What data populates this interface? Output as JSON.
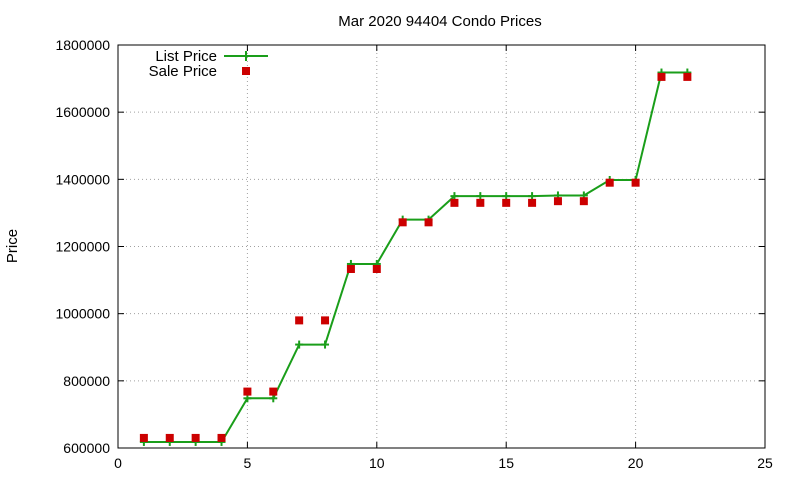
{
  "chart_data": {
    "type": "line",
    "title": "Mar 2020 94404 Condo Prices",
    "xlabel": "",
    "ylabel": "Price",
    "xlim": [
      0,
      25
    ],
    "ylim": [
      600000,
      1800000
    ],
    "x_ticks": [
      0,
      5,
      10,
      15,
      20,
      25
    ],
    "y_ticks": [
      600000,
      800000,
      1000000,
      1200000,
      1400000,
      1600000,
      1800000
    ],
    "x_tick_labels": [
      "0",
      "5",
      "10",
      "15",
      "20",
      "25"
    ],
    "y_tick_labels": [
      "600000",
      "800000",
      "1000000",
      "1200000",
      "1400000",
      "1600000",
      "1800000"
    ],
    "grid": true,
    "legend_position": "top-left",
    "series": [
      {
        "name": "List Price",
        "style": "line-with-plus-markers",
        "color": "#1a9e1a",
        "x": [
          1,
          2,
          3,
          4,
          5,
          6,
          7,
          8,
          9,
          10,
          11,
          12,
          13,
          14,
          15,
          16,
          17,
          18,
          19,
          20,
          21,
          22
        ],
        "y": [
          618000,
          618000,
          618000,
          618000,
          748000,
          748000,
          908000,
          908000,
          1148000,
          1148000,
          1280000,
          1280000,
          1350000,
          1350000,
          1350000,
          1350000,
          1352000,
          1352000,
          1398000,
          1398000,
          1718000,
          1718000
        ]
      },
      {
        "name": "Sale Price",
        "style": "square-markers",
        "color": "#cc0000",
        "x": [
          1,
          2,
          3,
          4,
          5,
          6,
          7,
          8,
          9,
          10,
          11,
          12,
          13,
          14,
          15,
          16,
          17,
          18,
          19,
          20,
          21,
          22
        ],
        "y": [
          630000,
          630000,
          630000,
          630000,
          768000,
          768000,
          980000,
          980000,
          1133000,
          1133000,
          1272000,
          1272000,
          1330000,
          1330000,
          1330000,
          1330000,
          1335000,
          1335000,
          1390000,
          1390000,
          1705000,
          1705000
        ]
      }
    ]
  }
}
